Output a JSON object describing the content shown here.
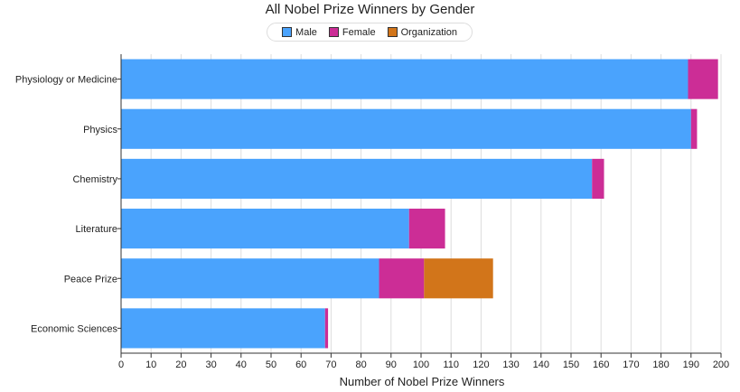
{
  "chart_data": {
    "type": "bar",
    "orientation": "horizontal",
    "stacked": true,
    "title": "All Nobel Prize Winners by Gender",
    "xlabel": "Number of Nobel Prize Winners",
    "ylabel": "",
    "xlim": [
      0,
      200
    ],
    "x_ticks": [
      0,
      10,
      20,
      30,
      40,
      50,
      60,
      70,
      80,
      90,
      100,
      110,
      120,
      130,
      140,
      150,
      160,
      170,
      180,
      190,
      200
    ],
    "grid": "vertical",
    "legend_position": "top",
    "categories": [
      "Physiology or Medicine",
      "Physics",
      "Chemistry",
      "Literature",
      "Peace Prize",
      "Economic Sciences"
    ],
    "series": [
      {
        "name": "Male",
        "color": "#4aa3fd",
        "values": [
          189,
          190,
          157,
          96,
          86,
          68
        ]
      },
      {
        "name": "Female",
        "color": "#cc2d96",
        "values": [
          10,
          2,
          4,
          12,
          15,
          1
        ]
      },
      {
        "name": "Organization",
        "color": "#d2751a",
        "values": [
          0,
          0,
          0,
          0,
          23,
          0
        ]
      }
    ]
  }
}
